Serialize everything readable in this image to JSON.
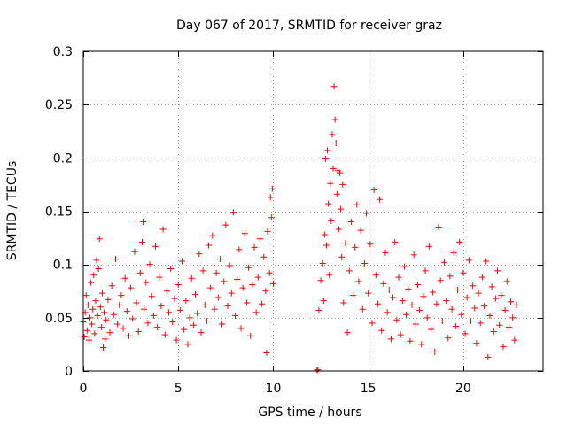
{
  "chart_data": {
    "type": "scatter",
    "title": "Day 067 of 2017, SRMTID for receiver graz",
    "xlabel": "GPS time / hours",
    "ylabel": "SRMTID / TECUs",
    "xlim": [
      0,
      24.2
    ],
    "ylim": [
      0,
      0.3
    ],
    "xticks": [
      0,
      5,
      10,
      15,
      20
    ],
    "xtick_labels": [
      "0",
      "5",
      "10",
      "15",
      "20"
    ],
    "yticks": [
      0,
      0.05,
      0.1,
      0.15,
      0.2,
      0.25,
      0.3
    ],
    "ytick_labels": [
      "0",
      "0.05",
      "0.1",
      "0.15",
      "0.2",
      "0.25",
      "0.3"
    ],
    "grid": true,
    "marker": "+",
    "series": [
      {
        "name": "SRMTID",
        "color": "#ff0000",
        "points": [
          [
            0.0,
            0.046
          ],
          [
            0.05,
            0.032
          ],
          [
            0.1,
            0.055
          ],
          [
            0.15,
            0.071
          ],
          [
            0.2,
            0.038
          ],
          [
            0.25,
            0.062
          ],
          [
            0.3,
            0.029
          ],
          [
            0.35,
            0.05
          ],
          [
            0.4,
            0.083
          ],
          [
            0.45,
            0.044
          ],
          [
            0.5,
            0.058
          ],
          [
            0.55,
            0.09
          ],
          [
            0.6,
            0.035
          ],
          [
            0.65,
            0.066
          ],
          [
            0.7,
            0.104
          ],
          [
            0.75,
            0.052
          ],
          [
            0.8,
            0.096
          ],
          [
            0.85,
            0.124
          ],
          [
            0.9,
            0.06
          ],
          [
            0.95,
            0.041
          ],
          [
            1.0,
            0.073
          ],
          [
            1.05,
            0.022
          ],
          [
            1.1,
            0.055
          ],
          [
            1.15,
            0.03
          ],
          [
            1.2,
            0.048
          ],
          [
            1.3,
            0.067
          ],
          [
            1.4,
            0.036
          ],
          [
            1.5,
            0.08
          ],
          [
            1.6,
            0.053
          ],
          [
            1.7,
            0.105
          ],
          [
            1.8,
            0.044
          ],
          [
            1.9,
            0.062
          ],
          [
            2.0,
            0.071
          ],
          [
            2.1,
            0.04
          ],
          [
            2.2,
            0.087
          ],
          [
            2.3,
            0.056
          ],
          [
            2.4,
            0.033
          ],
          [
            2.5,
            0.078
          ],
          [
            2.6,
            0.049
          ],
          [
            2.7,
            0.112
          ],
          [
            2.8,
            0.064
          ],
          [
            2.9,
            0.037
          ],
          [
            3.0,
            0.092
          ],
          [
            3.1,
            0.121
          ],
          [
            3.15,
            0.14
          ],
          [
            3.2,
            0.058
          ],
          [
            3.3,
            0.083
          ],
          [
            3.4,
            0.045
          ],
          [
            3.5,
            0.1
          ],
          [
            3.6,
            0.07
          ],
          [
            3.7,
            0.052
          ],
          [
            3.8,
            0.117
          ],
          [
            3.9,
            0.041
          ],
          [
            4.0,
            0.088
          ],
          [
            4.1,
            0.061
          ],
          [
            4.2,
            0.133
          ],
          [
            4.3,
            0.034
          ],
          [
            4.4,
            0.075
          ],
          [
            4.5,
            0.055
          ],
          [
            4.6,
            0.096
          ],
          [
            4.7,
            0.046
          ],
          [
            4.8,
            0.068
          ],
          [
            4.9,
            0.029
          ],
          [
            5.0,
            0.081
          ],
          [
            5.1,
            0.057
          ],
          [
            5.2,
            0.103
          ],
          [
            5.3,
            0.039
          ],
          [
            5.4,
            0.066
          ],
          [
            5.5,
            0.025
          ],
          [
            5.6,
            0.05
          ],
          [
            5.7,
            0.087
          ],
          [
            5.8,
            0.043
          ],
          [
            5.9,
            0.072
          ],
          [
            6.0,
            0.054
          ],
          [
            6.1,
            0.11
          ],
          [
            6.2,
            0.036
          ],
          [
            6.3,
            0.094
          ],
          [
            6.4,
            0.062
          ],
          [
            6.5,
            0.047
          ],
          [
            6.6,
            0.118
          ],
          [
            6.7,
            0.078
          ],
          [
            6.8,
            0.127
          ],
          [
            6.9,
            0.058
          ],
          [
            7.0,
            0.092
          ],
          [
            7.1,
            0.069
          ],
          [
            7.2,
            0.105
          ],
          [
            7.3,
            0.044
          ],
          [
            7.4,
            0.084
          ],
          [
            7.5,
            0.137
          ],
          [
            7.6,
            0.061
          ],
          [
            7.7,
            0.099
          ],
          [
            7.8,
            0.073
          ],
          [
            7.9,
            0.149
          ],
          [
            8.0,
            0.052
          ],
          [
            8.1,
            0.086
          ],
          [
            8.2,
            0.114
          ],
          [
            8.3,
            0.04
          ],
          [
            8.4,
            0.078
          ],
          [
            8.5,
            0.129
          ],
          [
            8.6,
            0.064
          ],
          [
            8.7,
            0.097
          ],
          [
            8.8,
            0.033
          ],
          [
            8.9,
            0.081
          ],
          [
            9.0,
            0.116
          ],
          [
            9.1,
            0.055
          ],
          [
            9.2,
            0.088
          ],
          [
            9.3,
            0.124
          ],
          [
            9.4,
            0.063
          ],
          [
            9.5,
            0.107
          ],
          [
            9.6,
            0.075
          ],
          [
            9.65,
            0.017
          ],
          [
            9.7,
            0.131
          ],
          [
            9.8,
            0.092
          ],
          [
            9.85,
            0.163
          ],
          [
            9.9,
            0.144
          ],
          [
            9.95,
            0.171
          ],
          [
            10.0,
            0.082
          ],
          [
            12.3,
            0.001
          ],
          [
            12.35,
            0.001
          ],
          [
            12.4,
            0.057
          ],
          [
            12.5,
            0.085
          ],
          [
            12.6,
            0.101
          ],
          [
            12.65,
            0.066
          ],
          [
            12.7,
            0.128
          ],
          [
            12.75,
            0.199
          ],
          [
            12.8,
            0.118
          ],
          [
            12.85,
            0.207
          ],
          [
            12.9,
            0.157
          ],
          [
            12.95,
            0.09
          ],
          [
            13.0,
            0.176
          ],
          [
            13.05,
            0.141
          ],
          [
            13.1,
            0.222
          ],
          [
            13.15,
            0.19
          ],
          [
            13.2,
            0.267
          ],
          [
            13.25,
            0.236
          ],
          [
            13.3,
            0.214
          ],
          [
            13.35,
            0.166
          ],
          [
            13.4,
            0.188
          ],
          [
            13.45,
            0.133
          ],
          [
            13.5,
            0.186
          ],
          [
            13.55,
            0.152
          ],
          [
            13.6,
            0.107
          ],
          [
            13.65,
            0.175
          ],
          [
            13.7,
            0.064
          ],
          [
            13.8,
            0.12
          ],
          [
            13.9,
            0.036
          ],
          [
            14.0,
            0.094
          ],
          [
            14.1,
            0.14
          ],
          [
            14.2,
            0.071
          ],
          [
            14.3,
            0.116
          ],
          [
            14.4,
            0.156
          ],
          [
            14.5,
            0.084
          ],
          [
            14.6,
            0.132
          ],
          [
            14.7,
            0.058
          ],
          [
            14.8,
            0.101
          ],
          [
            14.9,
            0.148
          ],
          [
            15.0,
            0.073
          ],
          [
            15.1,
            0.119
          ],
          [
            15.2,
            0.045
          ],
          [
            15.3,
            0.17
          ],
          [
            15.4,
            0.09
          ],
          [
            15.5,
            0.063
          ],
          [
            15.6,
            0.161
          ],
          [
            15.7,
            0.038
          ],
          [
            15.8,
            0.082
          ],
          [
            15.9,
            0.111
          ],
          [
            16.0,
            0.055
          ],
          [
            16.1,
            0.076
          ],
          [
            16.2,
            0.03
          ],
          [
            16.3,
            0.069
          ],
          [
            16.4,
            0.121
          ],
          [
            16.5,
            0.048
          ],
          [
            16.6,
            0.088
          ],
          [
            16.7,
            0.034
          ],
          [
            16.8,
            0.066
          ],
          [
            16.9,
            0.098
          ],
          [
            17.0,
            0.053
          ],
          [
            17.1,
            0.077
          ],
          [
            17.2,
            0.028
          ],
          [
            17.3,
            0.062
          ],
          [
            17.4,
            0.109
          ],
          [
            17.5,
            0.044
          ],
          [
            17.6,
            0.081
          ],
          [
            17.7,
            0.057
          ],
          [
            17.8,
            0.025
          ],
          [
            17.9,
            0.07
          ],
          [
            18.0,
            0.094
          ],
          [
            18.1,
            0.05
          ],
          [
            18.2,
            0.117
          ],
          [
            18.3,
            0.039
          ],
          [
            18.4,
            0.074
          ],
          [
            18.5,
            0.018
          ],
          [
            18.6,
            0.063
          ],
          [
            18.7,
            0.135
          ],
          [
            18.8,
            0.085
          ],
          [
            18.9,
            0.047
          ],
          [
            19.0,
            0.102
          ],
          [
            19.1,
            0.066
          ],
          [
            19.2,
            0.031
          ],
          [
            19.3,
            0.089
          ],
          [
            19.4,
            0.058
          ],
          [
            19.5,
            0.111
          ],
          [
            19.6,
            0.042
          ],
          [
            19.7,
            0.076
          ],
          [
            19.8,
            0.121
          ],
          [
            19.9,
            0.053
          ],
          [
            20.0,
            0.092
          ],
          [
            20.1,
            0.035
          ],
          [
            20.2,
            0.069
          ],
          [
            20.3,
            0.104
          ],
          [
            20.4,
            0.047
          ],
          [
            20.5,
            0.08
          ],
          [
            20.6,
            0.059
          ],
          [
            20.7,
            0.026
          ],
          [
            20.8,
            0.073
          ],
          [
            20.9,
            0.045
          ],
          [
            21.0,
            0.088
          ],
          [
            21.1,
            0.061
          ],
          [
            21.2,
            0.103
          ],
          [
            21.3,
            0.013
          ],
          [
            21.4,
            0.052
          ],
          [
            21.5,
            0.079
          ],
          [
            21.6,
            0.037
          ],
          [
            21.7,
            0.068
          ],
          [
            21.8,
            0.094
          ],
          [
            21.9,
            0.043
          ],
          [
            22.0,
            0.071
          ],
          [
            22.1,
            0.023
          ],
          [
            22.2,
            0.057
          ],
          [
            22.3,
            0.084
          ],
          [
            22.4,
            0.041
          ],
          [
            22.5,
            0.065
          ],
          [
            22.6,
            0.05
          ],
          [
            22.7,
            0.029
          ],
          [
            22.8,
            0.062
          ]
        ]
      }
    ]
  }
}
